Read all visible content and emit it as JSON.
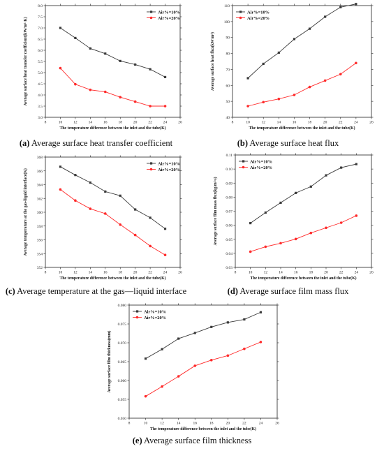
{
  "colors": {
    "series1": "#3a3a3a",
    "series2": "#ff2a2a",
    "axis": "#222222"
  },
  "charts": [
    {
      "type": "line",
      "caption_letter": "(a)",
      "caption_text": " Average surface heat transfer coefficient",
      "xlabel": "The temperature difference between the inlet and the tube(K)",
      "ylabel": "Average surface heat transfer coefficient(kW/m²·K)",
      "xlim": [
        8,
        26
      ],
      "xticks": [
        8,
        10,
        12,
        14,
        16,
        18,
        20,
        22,
        24,
        26
      ],
      "ylim": [
        3.0,
        8.0
      ],
      "yticks": [
        3.0,
        3.5,
        4.0,
        4.5,
        5.0,
        5.5,
        6.0,
        6.5,
        7.0,
        7.5,
        8.0
      ],
      "ydecimals": 1,
      "legend_position": "top-right",
      "x": [
        10,
        12,
        14,
        16,
        18,
        20,
        22,
        24
      ],
      "series": [
        {
          "name": "Air%=10%",
          "values": [
            7.0,
            6.55,
            6.08,
            5.85,
            5.52,
            5.36,
            5.15,
            4.8
          ]
        },
        {
          "name": "Air%=20%",
          "values": [
            5.2,
            4.48,
            4.23,
            4.14,
            3.9,
            3.7,
            3.5,
            3.5
          ]
        }
      ]
    },
    {
      "type": "line",
      "caption_letter": "(b)",
      "caption_text": " Average surface heat flux",
      "xlabel": "The temperature difference between the inlet and the tube(K)",
      "ylabel": "Average surface heat flux(kW/m²)",
      "xlim": [
        8,
        26
      ],
      "xticks": [
        8,
        10,
        12,
        14,
        16,
        18,
        20,
        22,
        24,
        26
      ],
      "ylim": [
        40,
        110
      ],
      "yticks": [
        40,
        50,
        60,
        70,
        80,
        90,
        100,
        110
      ],
      "ydecimals": 0,
      "legend_position": "top-left",
      "x": [
        10,
        12,
        14,
        16,
        18,
        20,
        22,
        24
      ],
      "series": [
        {
          "name": "Air%=10%",
          "values": [
            64.5,
            73.5,
            80.5,
            89,
            95.5,
            103,
            109,
            111
          ]
        },
        {
          "name": "Air%=20%",
          "values": [
            47,
            49.5,
            51.5,
            54,
            59,
            63,
            67,
            74
          ]
        }
      ]
    },
    {
      "type": "line",
      "caption_letter": "(c)",
      "caption_text": " Average temperature at the gas—liquid interface",
      "xlabel": "The temperature difference between the inlet and the tube(K)",
      "ylabel": "Average temperature at the gas-liquid interface(K)",
      "xlim": [
        8,
        26
      ],
      "xticks": [
        8,
        10,
        12,
        14,
        16,
        18,
        20,
        22,
        24,
        26
      ],
      "ylim": [
        352,
        368
      ],
      "yticks": [
        352,
        354,
        356,
        358,
        360,
        362,
        364,
        366,
        368
      ],
      "ydecimals": 0,
      "legend_position": "top-right",
      "x": [
        10,
        12,
        14,
        16,
        18,
        20,
        22,
        24
      ],
      "series": [
        {
          "name": "Air%=10%",
          "values": [
            366.6,
            365.4,
            364.3,
            363.0,
            362.4,
            360.4,
            359.2,
            357.6
          ]
        },
        {
          "name": "Air%=20%",
          "values": [
            363.3,
            361.7,
            360.5,
            359.8,
            358.2,
            356.7,
            355.1,
            353.8
          ]
        }
      ]
    },
    {
      "type": "line",
      "caption_letter": "(d)",
      "caption_text": " Average surface film mass flux",
      "xlabel": "The temperature difference between the inlet and the tube(K)",
      "ylabel": "Average surface film mass flux(kg/m²·s)",
      "xlim": [
        8,
        26
      ],
      "xticks": [
        8,
        10,
        12,
        14,
        16,
        18,
        20,
        22,
        24,
        26
      ],
      "ylim": [
        0.03,
        0.11
      ],
      "yticks": [
        0.03,
        0.04,
        0.05,
        0.06,
        0.07,
        0.08,
        0.09,
        0.1,
        0.11
      ],
      "ydecimals": 2,
      "legend_position": "top-left",
      "x": [
        10,
        12,
        14,
        16,
        18,
        20,
        22,
        24
      ],
      "series": [
        {
          "name": "Air%=10%",
          "values": [
            0.0615,
            0.069,
            0.076,
            0.083,
            0.0875,
            0.0955,
            0.101,
            0.1035
          ]
        },
        {
          "name": "Air%=20%",
          "values": [
            0.0412,
            0.0447,
            0.0472,
            0.0502,
            0.0545,
            0.0582,
            0.0618,
            0.0668
          ]
        }
      ]
    },
    {
      "type": "line",
      "caption_letter": "(e)",
      "caption_text": " Average surface film thickness",
      "xlabel": "The temperature difference between the inlet and the tube(K)",
      "ylabel": "Average surface film thickness(mm)",
      "xlim": [
        8,
        26
      ],
      "xticks": [
        8,
        10,
        12,
        14,
        16,
        18,
        20,
        22,
        24,
        26
      ],
      "ylim": [
        0.05,
        0.08
      ],
      "yticks": [
        0.05,
        0.055,
        0.06,
        0.065,
        0.07,
        0.075,
        0.08
      ],
      "ydecimals": 3,
      "legend_position": "top-left",
      "x": [
        10,
        12,
        14,
        16,
        18,
        20,
        22,
        24
      ],
      "series": [
        {
          "name": "Air%=10%",
          "values": [
            0.0658,
            0.0683,
            0.0711,
            0.0726,
            0.0742,
            0.0754,
            0.0762,
            0.0781
          ]
        },
        {
          "name": "Air%=20%",
          "values": [
            0.0558,
            0.0584,
            0.0611,
            0.0639,
            0.0654,
            0.0666,
            0.0684,
            0.0702
          ]
        }
      ]
    }
  ]
}
